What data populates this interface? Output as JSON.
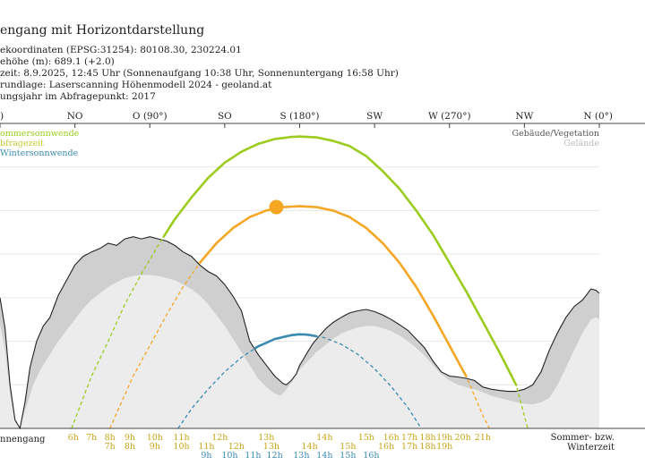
{
  "header": {
    "title": "engang mit Horizontdarstellung",
    "lines": [
      "ekoordinaten (EPSG:31254): 80108.30, 230224.01",
      "ehöhe (m): 689.1 (+2.0)",
      "zeit: 8.9.2025, 12:45 Uhr (Sonnenaufgang 10:38 Uhr,  Sonnenuntergang 16:58 Uhr)",
      "rundlage: Laserscanning Höhenmodell 2024 - geoland.at",
      "ungsjahr im Abfragepunkt: 2017"
    ]
  },
  "chart_data": {
    "type": "line",
    "xlim": [
      0,
      360
    ],
    "ylim": [
      0,
      70
    ],
    "x_label_left": "nnengang",
    "x_label_right": [
      "Sommer- bzw.",
      "Winterzeit"
    ],
    "direction_ticks": [
      {
        "azimuth": 0,
        "label": ")"
      },
      {
        "azimuth": 45,
        "label": "NO"
      },
      {
        "azimuth": 90,
        "label": "O (90°)"
      },
      {
        "azimuth": 135,
        "label": "SO"
      },
      {
        "azimuth": 180,
        "label": "S (180°)"
      },
      {
        "azimuth": 225,
        "label": "SW"
      },
      {
        "azimuth": 270,
        "label": "W (270°)"
      },
      {
        "azimuth": 315,
        "label": "NW"
      },
      {
        "azimuth": 360,
        "label": "N (0°)"
      }
    ],
    "legend_left": [
      {
        "label": "ommersonnwende",
        "color": "#9bcc1e"
      },
      {
        "label": "bfragezeit",
        "color": "#c8c832"
      },
      {
        "label": "Wintersonnwende",
        "color": "#3a8ab0"
      }
    ],
    "legend_right": [
      {
        "label": "Gebäude/Vegetation",
        "color": "#555555"
      },
      {
        "label": "Gelände",
        "color": "#bbbbbb"
      }
    ],
    "series": [
      {
        "key": "summer",
        "color": "#9bcc1e",
        "x": [
          43,
          55,
          65,
          75,
          85,
          95,
          105,
          115,
          125,
          135,
          145,
          155,
          165,
          175,
          180,
          190,
          200,
          210,
          220,
          230,
          240,
          250,
          260,
          270,
          280,
          290,
          300,
          310,
          317
        ],
        "y": [
          0,
          12,
          20,
          28.5,
          35.5,
          42,
          48,
          53,
          57.5,
          61,
          63.5,
          65.3,
          66.4,
          66.9,
          67,
          66.8,
          66,
          64.8,
          62.5,
          59,
          55,
          50,
          44.5,
          38,
          31.5,
          24.5,
          17.5,
          10,
          0
        ]
      },
      {
        "key": "query",
        "color": "#f5a623",
        "x": [
          66,
          80,
          90,
          100,
          110,
          120,
          130,
          140,
          150,
          160,
          170,
          180,
          190,
          200,
          210,
          220,
          230,
          240,
          250,
          260,
          270,
          280,
          290,
          294
        ],
        "y": [
          0,
          12,
          19,
          26,
          32.5,
          38,
          42.5,
          46,
          48.5,
          50,
          50.8,
          51,
          50.8,
          50,
          48.5,
          46,
          42.5,
          38,
          32.5,
          26,
          19,
          12,
          3,
          0
        ]
      },
      {
        "key": "winter",
        "color": "#3a8ab0",
        "x": [
          107,
          115,
          125,
          135,
          145,
          155,
          165,
          175,
          180,
          185,
          195,
          205,
          215,
          225,
          235,
          245,
          253
        ],
        "y": [
          0,
          4.5,
          9,
          13,
          16.3,
          18.8,
          20.5,
          21.4,
          21.6,
          21.5,
          20.8,
          19.3,
          17,
          13.7,
          9.6,
          4.8,
          0
        ]
      }
    ],
    "sun_marker": {
      "azimuth": 166,
      "altitude": 50.8,
      "color": "#f5a623"
    },
    "horizon_total": {
      "x": [
        0,
        3,
        6,
        9,
        12,
        15,
        18,
        22,
        26,
        30,
        35,
        40,
        45,
        50,
        55,
        60,
        65,
        70,
        75,
        80,
        85,
        90,
        95,
        100,
        105,
        110,
        115,
        120,
        125,
        130,
        135,
        140,
        145,
        150,
        155,
        160,
        165,
        170,
        172,
        175,
        178,
        180,
        182,
        185,
        188,
        192,
        196,
        200,
        205,
        210,
        215,
        220,
        225,
        230,
        235,
        240,
        245,
        250,
        255,
        260,
        265,
        270,
        275,
        280,
        285,
        290,
        295,
        300,
        305,
        310,
        315,
        320,
        325,
        330,
        335,
        340,
        345,
        350,
        355,
        358,
        360
      ],
      "y": [
        30,
        23,
        10,
        2,
        0,
        6,
        14,
        20,
        23.5,
        25.5,
        30.5,
        34,
        37.5,
        39.5,
        40.5,
        41.3,
        42.5,
        42,
        43.5,
        44,
        43.5,
        44,
        43.5,
        43,
        42,
        40.5,
        39.5,
        37.5,
        36,
        35,
        33,
        30.3,
        27,
        20,
        17,
        14.5,
        12,
        10.3,
        10,
        11,
        12.5,
        14.5,
        15.7,
        17.7,
        19.5,
        21.3,
        23,
        24.3,
        25.5,
        26.5,
        27,
        27.3,
        26.8,
        26,
        25,
        23.8,
        22.5,
        20.5,
        18.5,
        15.5,
        13,
        12,
        11.8,
        11.5,
        11,
        9.5,
        9,
        8.7,
        8.5,
        8.5,
        9,
        10,
        13,
        18,
        22,
        25.5,
        28,
        29.5,
        32,
        31.7,
        31
      ]
    },
    "horizon_terrain": {
      "x": [
        0,
        3,
        6,
        9,
        12,
        15,
        20,
        25,
        30,
        35,
        40,
        45,
        50,
        55,
        60,
        65,
        70,
        75,
        80,
        85,
        90,
        95,
        100,
        105,
        110,
        115,
        120,
        125,
        130,
        135,
        140,
        145,
        150,
        155,
        160,
        165,
        168,
        170,
        172,
        175,
        178,
        180,
        185,
        190,
        195,
        200,
        205,
        210,
        215,
        220,
        225,
        230,
        235,
        240,
        245,
        250,
        255,
        260,
        265,
        270,
        275,
        280,
        285,
        290,
        295,
        300,
        305,
        310,
        315,
        320,
        325,
        330,
        335,
        340,
        345,
        350,
        355,
        358,
        360
      ],
      "y": [
        24,
        18,
        8,
        1.5,
        0,
        4,
        10,
        14,
        17,
        20,
        22.5,
        25,
        27.5,
        29.5,
        31,
        32.5,
        33.5,
        34.5,
        35,
        35.2,
        35.2,
        35,
        34.5,
        34,
        33,
        32,
        30.5,
        28.5,
        26,
        23.5,
        20.5,
        17.5,
        14.5,
        11.5,
        9.5,
        8,
        7.5,
        8,
        9,
        10.5,
        12.5,
        13.5,
        15.5,
        17.5,
        19,
        20.5,
        21.8,
        22.5,
        23.2,
        23.5,
        23.5,
        23,
        22.3,
        21.3,
        20,
        18.5,
        16.7,
        14.5,
        12.5,
        11,
        10,
        9.5,
        9,
        8.3,
        7.5,
        7,
        6.5,
        6,
        5.7,
        5.5,
        6,
        7,
        10,
        14,
        18,
        22,
        25,
        25.5,
        25
      ]
    },
    "hour_labels_summer": [
      {
        "azimuth": 44,
        "label": "6h"
      },
      {
        "azimuth": 55,
        "label": "7h"
      },
      {
        "azimuth": 66,
        "label": "8h"
      },
      {
        "azimuth": 78,
        "label": "9h"
      },
      {
        "azimuth": 93,
        "label": "10h"
      },
      {
        "azimuth": 109,
        "label": "11h"
      },
      {
        "azimuth": 132,
        "label": "12h"
      },
      {
        "azimuth": 160,
        "label": "13h"
      },
      {
        "azimuth": 195,
        "label": "14h"
      },
      {
        "azimuth": 220,
        "label": "15h"
      },
      {
        "azimuth": 235,
        "label": "16h"
      },
      {
        "azimuth": 246,
        "label": "17h"
      },
      {
        "azimuth": 257,
        "label": "18h"
      },
      {
        "azimuth": 267,
        "label": "19h"
      },
      {
        "azimuth": 278,
        "label": "20h"
      },
      {
        "azimuth": 290,
        "label": "21h"
      }
    ],
    "hour_labels_query": [
      {
        "azimuth": 66,
        "label": "7h"
      },
      {
        "azimuth": 78,
        "label": "8h"
      },
      {
        "azimuth": 93,
        "label": "9h"
      },
      {
        "azimuth": 109,
        "label": "10h"
      },
      {
        "azimuth": 124,
        "label": "11h"
      },
      {
        "azimuth": 142,
        "label": "12h"
      },
      {
        "azimuth": 163,
        "label": "13h"
      },
      {
        "azimuth": 186,
        "label": "14h"
      },
      {
        "azimuth": 209,
        "label": "15h"
      },
      {
        "azimuth": 232,
        "label": "16h"
      },
      {
        "azimuth": 246,
        "label": "17h"
      },
      {
        "azimuth": 257,
        "label": "18h"
      },
      {
        "azimuth": 267,
        "label": "19h"
      }
    ],
    "hour_labels_winter": [
      {
        "azimuth": 124,
        "label": "9h"
      },
      {
        "azimuth": 138,
        "label": "10h"
      },
      {
        "azimuth": 152,
        "label": "11h"
      },
      {
        "azimuth": 165,
        "label": "12h"
      },
      {
        "azimuth": 181,
        "label": "13h"
      },
      {
        "azimuth": 195,
        "label": "14h"
      },
      {
        "azimuth": 209,
        "label": "15h"
      },
      {
        "azimuth": 223,
        "label": "16h"
      }
    ]
  }
}
